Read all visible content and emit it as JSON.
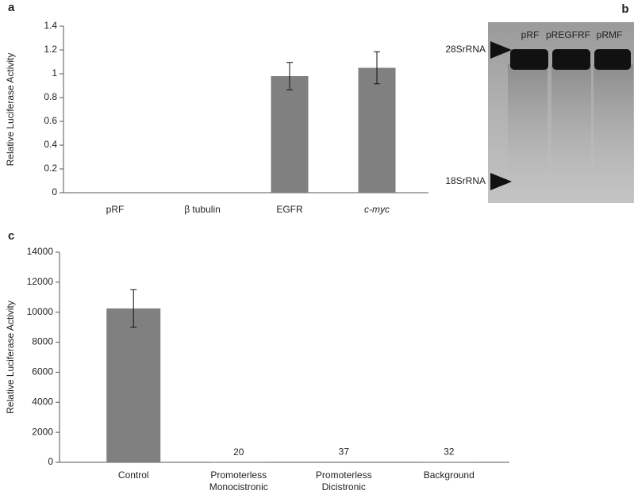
{
  "chart_data": [
    {
      "type": "bar",
      "panel": "a",
      "ylabel": "Relative Luciferase Activity",
      "categories": [
        "pRF",
        "β tubulin",
        "EGFR",
        "c-myc"
      ],
      "values": [
        0,
        0,
        0.98,
        1.05
      ],
      "errors": [
        null,
        null,
        0.115,
        0.135
      ],
      "color": "#808080",
      "ylim": [
        0,
        1.4
      ],
      "yticks": [
        0,
        0.2,
        0.4,
        0.6,
        0.8,
        1,
        1.2,
        1.4
      ]
    },
    {
      "type": "bar",
      "panel": "c",
      "ylabel": "Relative Luciferase Activity",
      "categories": [
        "Control",
        "Promoterless Monocistronic",
        "Promoterless Dicistronic",
        "Background"
      ],
      "values": [
        10250,
        20,
        37,
        32
      ],
      "value_labels": [
        null,
        "20",
        "37",
        "32"
      ],
      "errors": [
        1250,
        null,
        null,
        null
      ],
      "color": "#808080",
      "ylim": [
        0,
        14000
      ],
      "yticks": [
        0,
        2000,
        4000,
        6000,
        8000,
        10000,
        12000,
        14000
      ]
    }
  ],
  "gel": {
    "panel": "b",
    "lanes": [
      "pRF",
      "pREGFRF",
      "pRMF"
    ],
    "markers": [
      "28SrRNA",
      "18SrRNA"
    ]
  }
}
